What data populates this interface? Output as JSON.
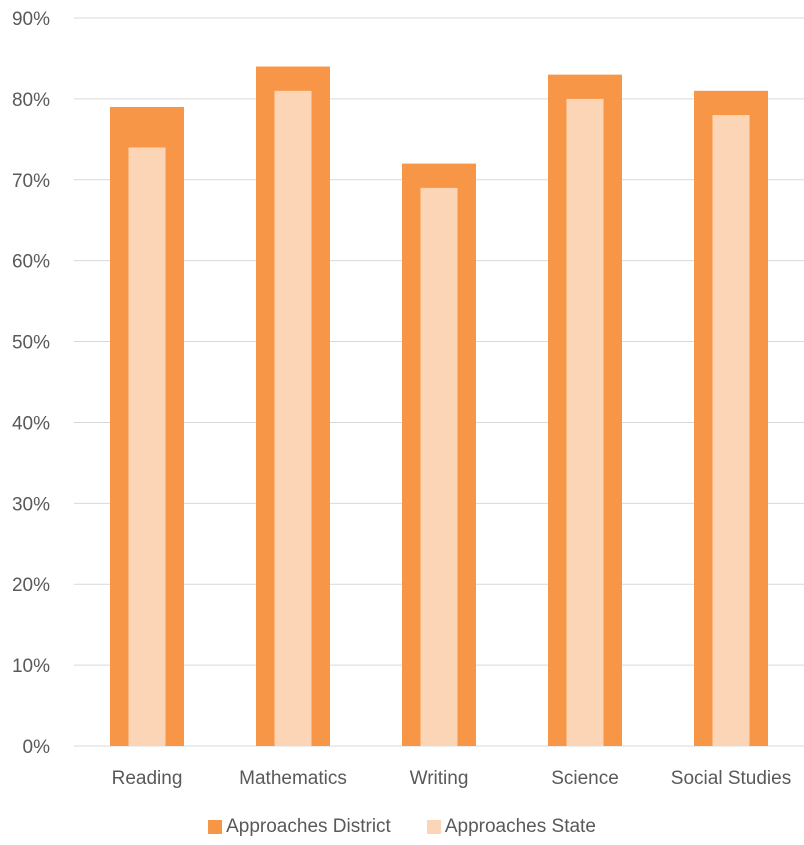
{
  "chart_data": {
    "type": "bar",
    "categories": [
      "Reading",
      "Mathematics",
      "Writing",
      "Science",
      "Social Studies"
    ],
    "series": [
      {
        "name": "Approaches District",
        "values": [
          79,
          84,
          72,
          83,
          81
        ],
        "color": "#F79646"
      },
      {
        "name": "Approaches State",
        "values": [
          74,
          81,
          69,
          80,
          78
        ],
        "color": "#FBD5B5"
      }
    ],
    "y_ticks": [
      "0%",
      "10%",
      "20%",
      "30%",
      "40%",
      "50%",
      "60%",
      "70%",
      "80%",
      "90%"
    ],
    "ylim": [
      0,
      90
    ],
    "y_unit": "%",
    "grid": true,
    "legend_position": "bottom",
    "overlap": true,
    "gridline_color": "#D9D9D9"
  }
}
